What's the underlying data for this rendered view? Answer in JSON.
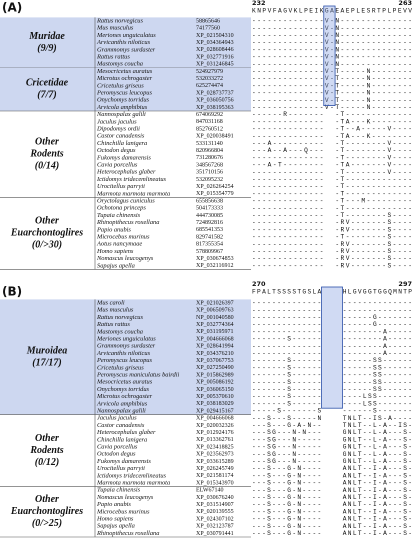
{
  "panels": [
    {
      "label": "(A)",
      "positions": [
        232,
        263
      ],
      "consensus": "KNPVFAGVKLPEIKGAEAEPLESRTPLPEVV",
      "groups": [
        {
          "label_lines": [
            "Muridae",
            "(9/9)"
          ],
          "highlighted": true,
          "rows": [
            {
              "species": "Rattus norvegicus",
              "accession": "58865646",
              "seq": "--------------V-N--------------"
            },
            {
              "species": "Mus musculus",
              "accession": "74177560",
              "seq": "--------------V-N--------------"
            },
            {
              "species": "Meriones unguiculatus",
              "accession": "XP_021504310",
              "seq": "--------------V-N--------------"
            },
            {
              "species": "Arvicanthis niloticus",
              "accession": "XP_034364943",
              "seq": "--------------V-N--------------"
            },
            {
              "species": "Grammomys surdaster",
              "accession": "XP_028608446",
              "seq": "--------------V-N--------------"
            },
            {
              "species": "Rattus rattus",
              "accession": "XP_032771916",
              "seq": "--------------V-N--------------"
            },
            {
              "species": "Mastomys coucha",
              "accession": "XP_031246845",
              "seq": "--------------V-N--------------"
            }
          ]
        },
        {
          "label_lines": [
            "Cricetidae",
            "(7/7)"
          ],
          "highlighted": true,
          "rows": [
            {
              "species": "Mesocricetus auratus",
              "accession": "524927979",
              "seq": "--------------V-T-----N--------"
            },
            {
              "species": "Microtus ochrogaster",
              "accession": "532033272",
              "seq": "--------------V-T-----N--------"
            },
            {
              "species": "Cricetulus griseus",
              "accession": "625274474",
              "seq": "--------------V-T-----N--------"
            },
            {
              "species": "Peromyscus leucopus",
              "accession": "XP_028737737",
              "seq": "--------------V-T-----N--------"
            },
            {
              "species": "Onychomys torridus",
              "accession": "XP_036050756",
              "seq": "--------------V-T-----N--------"
            },
            {
              "species": "Arvicola amphibius",
              "accession": "XP_038195363",
              "seq": "--------------V-T-----N--------"
            }
          ]
        },
        {
          "label_lines": [
            "Other",
            "Rodents",
            "(0/14)"
          ],
          "highlighted": false,
          "rows": [
            {
              "species": "Nannospalax galili",
              "accession": "674069292",
              "seq": "------R-------  -T-------------"
            },
            {
              "species": "Jaculus jaculus",
              "accession": "847031168",
              "seq": "--------------  -TA---K--------"
            },
            {
              "species": "Dipodomys ordii",
              "accession": "852760512",
              "seq": "--------------  -T--A-----V----"
            },
            {
              "species": "Castor canadensis",
              "accession": "XP_020038491",
              "seq": "--------------  -TA---K--------"
            },
            {
              "species": "Chinchilla lanigera",
              "accession": "533131140",
              "seq": "---A----------  -T--------V----"
            },
            {
              "species": "Octodon degus",
              "accession": "820966804",
              "seq": "---A--A---Q---  -T--------V----"
            },
            {
              "species": "Fukomys damarensis",
              "accession": "731280676",
              "seq": "--------------  -T--------V----"
            },
            {
              "species": "Cavia porcellus",
              "accession": "348567268",
              "seq": "---A-T--------  -TA-------V----"
            },
            {
              "species": "Heterocephalus glaber",
              "accession": "351710156",
              "seq": "--------------  -T--------V----"
            },
            {
              "species": "Ictidomys tridecemlineatus",
              "accession": "532095232",
              "seq": "--------------  -T-------------"
            },
            {
              "species": "Urocitellus parryii",
              "accession": "XP_026264254",
              "seq": "--------------  -T-------------"
            },
            {
              "species": "Marmota marmota marmota",
              "accession": "XP_015354779",
              "seq": "--------------  -T-------------"
            }
          ]
        },
        {
          "label_lines": [
            "Other",
            "Euarchontoglires",
            "(0/>30)"
          ],
          "highlighted": false,
          "rows": [
            {
              "species": "Oryctolagus cuniculus",
              "accession": "655856638",
              "seq": "--------------  -T---M---------"
            },
            {
              "species": "Ochotona princeps",
              "accession": "504173333",
              "seq": "--------------  -T-------------"
            },
            {
              "species": "Tupaia chinensis",
              "accession": "444730085",
              "seq": "--------------  -T--------S----"
            },
            {
              "species": "Rhinopithecus roxellana",
              "accession": "724892816",
              "seq": "--------------  -RV-------S----"
            },
            {
              "species": "Papio anubis",
              "accession": "685541353",
              "seq": "--------------  -RV-------S----"
            },
            {
              "species": "Microcebus murinus",
              "accession": "829741582",
              "seq": "--------------  -T--------S----"
            },
            {
              "species": "Aotus nancymaae",
              "accession": "817355354",
              "seq": "--------------  -RV-------S----"
            },
            {
              "species": "Homo sapiens",
              "accession": "578809967",
              "seq": "--------------  -RV-------S----"
            },
            {
              "species": "Nomascus leucogenys",
              "accession": "XP_030674853",
              "seq": "--------------  -RV-------S----"
            },
            {
              "species": "Sapajus apella",
              "accession": "XP_032116912",
              "seq": "--------------  -RV-------S----"
            }
          ]
        }
      ]
    },
    {
      "label": "(B)",
      "positions": [
        270,
        297
      ],
      "consensus": "FPALTSSSSTGSLA    HLGVGGTGGQMNTP",
      "groups": [
        {
          "label_lines": [
            "Muroidea",
            "(17/17)"
          ],
          "highlighted": true,
          "rows": [
            {
              "species": "Mus caroli",
              "accession": "XP_021026397",
              "seq": "--------------    --------------"
            },
            {
              "species": "Mus musculus",
              "accession": "XP_006509763",
              "seq": "--------------    --------------"
            },
            {
              "species": "Rattus norvegicus",
              "accession": "NP_001040580",
              "seq": "--------------    ------G-------"
            },
            {
              "species": "Rattus rattus",
              "accession": "XP_032774364",
              "seq": "--------------    ------G-------"
            },
            {
              "species": "Mastomys coucha",
              "accession": "XP_031195971",
              "seq": "--------------    --------A-----"
            },
            {
              "species": "Meriones unguiculatus",
              "accession": "XP_004666068",
              "seq": "-------S------    --------A-----"
            },
            {
              "species": "Grammomys surdaster",
              "accession": "XP_028641994",
              "seq": "--------------    --------A-----"
            },
            {
              "species": "Arvicanthis niloticus",
              "accession": "XP_034376210",
              "seq": "--------------    --------A-----"
            },
            {
              "species": "Peromyscus leucopus",
              "accession": "XP_037067753",
              "seq": "-------S------    ------SS------"
            },
            {
              "species": "Cricetulus griseus",
              "accession": "XP_027250490",
              "seq": "-------S------    ------SS------"
            },
            {
              "species": "Peromyscus maniculatus bairdii",
              "accession": "XP_015862989",
              "seq": "-------S------    ------SS------"
            },
            {
              "species": "Mesocricetus auratus",
              "accession": "XP_005086192",
              "seq": "-------S------    ------SS------"
            },
            {
              "species": "Onychomys torridus",
              "accession": "XP_036065150",
              "seq": "-------S------    ------SS------"
            },
            {
              "species": "Microtus ochrogaster",
              "accession": "XP_005370610",
              "seq": "-------S------    ----LSS-------"
            },
            {
              "species": "Arvicola amphibius",
              "accession": "XP_038183029",
              "seq": "-------S------    ----LSS-------"
            },
            {
              "species": "Nannospalax galili",
              "accession": "XP_029415167",
              "seq": "-----S-------S    ------S-------"
            }
          ]
        },
        {
          "label_lines": [
            "Other",
            "Rodents",
            "(0/12)"
          ],
          "highlighted": false,
          "rows": [
            {
              "species": "Jaculus jaculus",
              "accession": "XP_004666068",
              "seq": "---S---S-----N    TNLT--IS-A----"
            },
            {
              "species": "Castor canadensis",
              "accession": "XP_020032326",
              "seq": "---S---G-A-N--    TNLT--L-A--IS-"
            },
            {
              "species": "Heterocephalus glaber",
              "accession": "XP_012924176",
              "seq": "---SG---N-N---    GNLT--L-A---S-"
            },
            {
              "species": "Chinchilla lanigera",
              "accession": "XP_013362761",
              "seq": "---SG---N-----    GNLT--L-A---S-"
            },
            {
              "species": "Cavia porcellus",
              "accession": "XP_023418825",
              "seq": "---SG---N-----    GNLT--L-A---S-"
            },
            {
              "species": "Octodon degus",
              "accession": "XP_023562973",
              "seq": "---SG---N-----    GNLT--L-A---S-"
            },
            {
              "species": "Fukomys damarensis",
              "accession": "XP_033615289",
              "seq": "---SG---N-----    GNLT--L-A---S-"
            },
            {
              "species": "Urocitellus parryii",
              "accession": "XP_026245749",
              "seq": "---S---G-N----    ANLT--I-A---S-"
            },
            {
              "species": "Ictidomys tridecemlineatus",
              "accession": "XP_021581174",
              "seq": "---S---G-N----    ANLT--I-A---S-"
            },
            {
              "species": "Marmota marmota marmota",
              "accession": "XP_015343970",
              "seq": "---S---G-N----    ANLT--I-A---S-"
            }
          ]
        },
        {
          "label_lines": [
            "Other",
            "Euarchontoglires",
            "(0/>25)"
          ],
          "highlighted": false,
          "rows": [
            {
              "species": "Tupaia chinensis",
              "accession": "ELW67140",
              "seq": "---S---G-N----    ANLT--I-A---S-"
            },
            {
              "species": "Nomascus leucogenys",
              "accession": "XP_030676240",
              "seq": "---S---G-N----    ANLT--I-A---S-"
            },
            {
              "species": "Papio anubis",
              "accession": "XP_031514907",
              "seq": "---S---G-N----    ANLT--I-A---S-"
            },
            {
              "species": "Microcebus murinus",
              "accession": "XP_020139555",
              "seq": "---S---G-N----    ANLT--I-A---S-"
            },
            {
              "species": "Homo sapiens",
              "accession": "XP_024307102",
              "seq": "---S---G-N----    ANLT--I-A---S-"
            },
            {
              "species": "Sapajus apella",
              "accession": "XP_032123787",
              "seq": "---S---G-N----    ANLT--I-A---S-"
            },
            {
              "species": "Rhinopithecus roxellana",
              "accession": "XP_030791441",
              "seq": "---S---G-N----    ANLT--I-A---S-"
            }
          ]
        }
      ]
    }
  ]
}
